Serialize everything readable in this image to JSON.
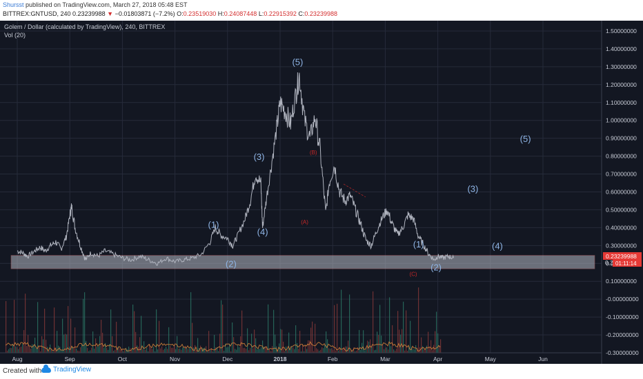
{
  "header": {
    "user": "Shursst",
    "published": " published on TradingView.com, March 27, 2018 05:48 EST",
    "symbol": "BITTREX:GNTUSD, 240",
    "price": "0.23239988",
    "change_arrow": "▼",
    "change": "−0.01803871 (−7.2%)",
    "o_label": "O:",
    "o_val": "0.23519030",
    "h_label": "H:",
    "h_val": "0.24087448",
    "l_label": "L:",
    "l_val": "0.22915392",
    "c_label": "C:",
    "c_val": "0.23239988"
  },
  "legend": {
    "title": "Golem / Dollar (calculated by TradingView), 240, BITTREX",
    "vol": "Vol (20)"
  },
  "footer": {
    "created": "Created with",
    "brand": "TradingView"
  },
  "colors": {
    "background": "#131722",
    "grid": "#262b3a",
    "wave": "#8fb5e6",
    "corrective": "#c62828",
    "axis_text": "#c8ccd6",
    "zone": "#b4b8c2"
  },
  "chart_data": {
    "type": "line",
    "x_axis": {
      "ticks": [
        "Aug",
        "Sep",
        "Oct",
        "Nov",
        "Dec",
        "2018",
        "Feb",
        "Mar",
        "Apr",
        "May",
        "Jun"
      ]
    },
    "y_axis": {
      "ticks": [
        "1.50000000",
        "1.40000000",
        "1.30000000",
        "1.20000000",
        "1.10000000",
        "1.00000000",
        "0.90000000",
        "0.80000000",
        "0.70000000",
        "0.60000000",
        "0.50000000",
        "0.40000000",
        "0.30000000",
        "0.20000000",
        "0.10000000",
        "-0.00000000",
        "-0.10000000",
        "-0.20000000",
        "-0.30000000"
      ],
      "range": [
        -0.3,
        1.55
      ]
    },
    "last_price_label": "0.23239988",
    "countdown_label": "01:11:14",
    "truncated_tick": "0.2",
    "series": [
      {
        "values": [
          [
            0,
            0.27
          ],
          [
            0.3,
            0.26
          ],
          [
            0.6,
            0.24
          ],
          [
            1,
            0.27
          ],
          [
            1.3,
            0.29
          ],
          [
            1.6,
            0.27
          ],
          [
            1.9,
            0.3
          ],
          [
            2.2,
            0.32
          ],
          [
            2.5,
            0.28
          ],
          [
            2.8,
            0.35
          ],
          [
            3,
            0.47
          ],
          [
            3.1,
            0.52
          ],
          [
            3.3,
            0.4
          ],
          [
            3.6,
            0.3
          ],
          [
            3.9,
            0.22
          ],
          [
            4.2,
            0.26
          ],
          [
            4.6,
            0.24
          ],
          [
            5,
            0.27
          ],
          [
            5.5,
            0.25
          ],
          [
            6,
            0.23
          ],
          [
            6.5,
            0.22
          ],
          [
            7,
            0.24
          ],
          [
            7.5,
            0.22
          ],
          [
            8,
            0.2
          ],
          [
            8.5,
            0.23
          ],
          [
            9,
            0.21
          ],
          [
            9.5,
            0.22
          ],
          [
            10,
            0.23
          ],
          [
            10.5,
            0.25
          ],
          [
            11,
            0.32
          ],
          [
            11.3,
            0.4
          ],
          [
            11.6,
            0.36
          ],
          [
            12,
            0.34
          ],
          [
            12.3,
            0.3
          ],
          [
            12.6,
            0.36
          ],
          [
            13,
            0.45
          ],
          [
            13.3,
            0.55
          ],
          [
            13.6,
            0.7
          ],
          [
            13.9,
            0.65
          ],
          [
            14,
            0.4
          ],
          [
            14.2,
            0.55
          ],
          [
            14.5,
            0.75
          ],
          [
            14.8,
            0.95
          ],
          [
            15,
            1.1
          ],
          [
            15.3,
            1.05
          ],
          [
            15.6,
            0.98
          ],
          [
            15.9,
            1.15
          ],
          [
            16.1,
            1.25
          ],
          [
            16.4,
            1.0
          ],
          [
            16.7,
            0.9
          ],
          [
            17,
            1.02
          ],
          [
            17.3,
            0.82
          ],
          [
            17.6,
            0.48
          ],
          [
            17.8,
            0.65
          ],
          [
            18.1,
            0.75
          ],
          [
            18.4,
            0.6
          ],
          [
            18.7,
            0.55
          ],
          [
            19,
            0.58
          ],
          [
            19.3,
            0.5
          ],
          [
            19.6,
            0.42
          ],
          [
            19.9,
            0.33
          ],
          [
            20.2,
            0.3
          ],
          [
            20.5,
            0.38
          ],
          [
            20.8,
            0.45
          ],
          [
            21.1,
            0.5
          ],
          [
            21.4,
            0.42
          ],
          [
            21.7,
            0.36
          ],
          [
            22,
            0.4
          ],
          [
            22.3,
            0.47
          ],
          [
            22.6,
            0.45
          ],
          [
            22.9,
            0.35
          ],
          [
            23.2,
            0.3
          ],
          [
            23.5,
            0.25
          ],
          [
            23.8,
            0.22
          ],
          [
            24,
            0.24
          ],
          [
            24.3,
            0.23
          ],
          [
            24.6,
            0.24
          ],
          [
            24.9,
            0.23
          ]
        ]
      }
    ],
    "annotations": {
      "wave_labels": [
        {
          "text": "(1)",
          "x": 11.2,
          "y": 0.4
        },
        {
          "text": "(2)",
          "x": 12.2,
          "y": 0.18
        },
        {
          "text": "(3)",
          "x": 13.8,
          "y": 0.78
        },
        {
          "text": "(4)",
          "x": 14.0,
          "y": 0.36
        },
        {
          "text": "(5)",
          "x": 16.0,
          "y": 1.31
        },
        {
          "text": "(1)",
          "x": 22.9,
          "y": 0.29
        },
        {
          "text": "(2)",
          "x": 23.9,
          "y": 0.16
        },
        {
          "text": "(3)",
          "x": 26.0,
          "y": 0.6
        },
        {
          "text": "(4)",
          "x": 27.4,
          "y": 0.28
        },
        {
          "text": "(5)",
          "x": 29.0,
          "y": 0.88
        }
      ],
      "corrective_labels": [
        {
          "text": "(A)",
          "x": 16.4,
          "y": 0.42
        },
        {
          "text": "(B)",
          "x": 16.9,
          "y": 0.81
        },
        {
          "text": "(C)",
          "x": 22.6,
          "y": 0.13
        }
      ],
      "support_zone": [
        0.17,
        0.245
      ]
    }
  }
}
